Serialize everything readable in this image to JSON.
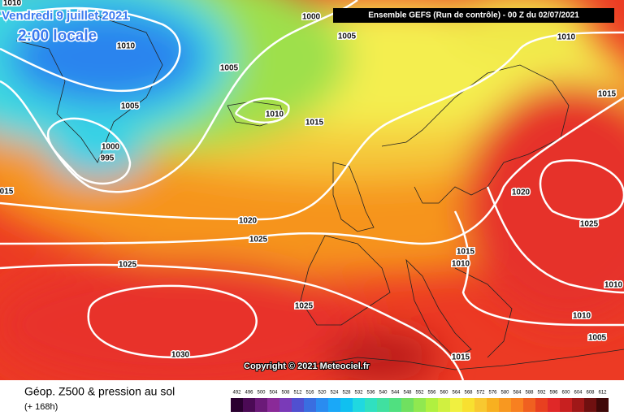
{
  "header": {
    "date": "Vendredi 9 juillet 2021",
    "time": "2:00 locale",
    "model": "Ensemble GEFS  (Run de contrôle)  -  00 Z du 02/07/2021"
  },
  "isobars": {
    "labels": [
      "1010",
      "1000",
      "1005",
      "1010",
      "1010",
      "1005",
      "1015",
      "1005",
      "1010",
      "1015",
      "1000",
      "995",
      "015",
      "1020",
      "1020",
      "1025",
      "1025",
      "1015",
      "1010",
      "1025",
      "1010",
      "1025",
      "1010",
      "1005",
      "1030",
      "1015"
    ]
  },
  "copyright": "Copyright © 2021 Meteociel.fr",
  "footer": {
    "title": "Géop. Z500 & pression au sol",
    "lead": "(+ 168h)"
  },
  "colorbar": {
    "labels": [
      492,
      496,
      500,
      504,
      508,
      512,
      516,
      520,
      524,
      528,
      532,
      536,
      540,
      544,
      548,
      552,
      556,
      560,
      564,
      568,
      572,
      576,
      580,
      584,
      588,
      592,
      596,
      600,
      604,
      608,
      612
    ],
    "colors": [
      "#2a0030",
      "#4b0a55",
      "#6b1a78",
      "#8a2a98",
      "#7a3ab8",
      "#5050d0",
      "#3a6ee0",
      "#2a8cf0",
      "#1aa8f8",
      "#10c0f0",
      "#20d8e0",
      "#30e0c0",
      "#40e0a0",
      "#50e080",
      "#70e060",
      "#90e850",
      "#b0f040",
      "#d0f040",
      "#f0f040",
      "#f8e030",
      "#f8c830",
      "#f8b020",
      "#f89820",
      "#f88020",
      "#f06020",
      "#e84020",
      "#e02828",
      "#c82020",
      "#a01818",
      "#701010",
      "#400808"
    ]
  }
}
